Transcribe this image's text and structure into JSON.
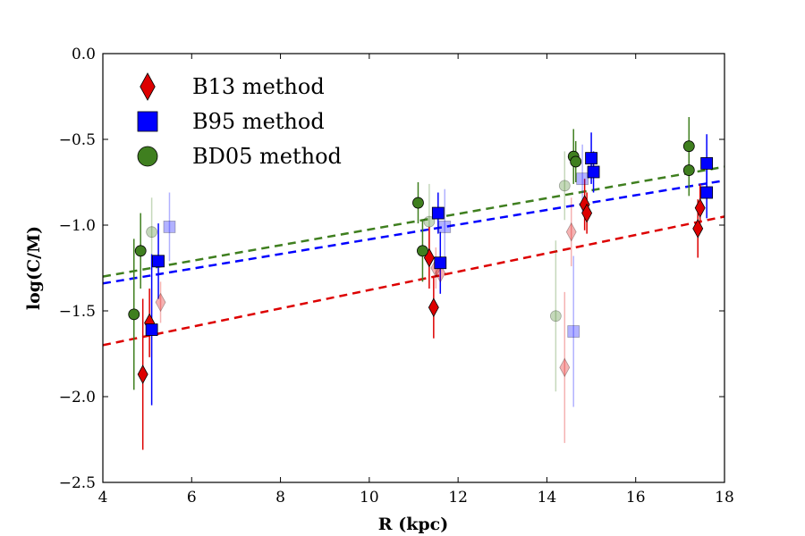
{
  "chart_data": {
    "type": "scatter",
    "title": "",
    "xlabel": "R (kpc)",
    "ylabel": "log(C/M)",
    "xlim": [
      4,
      18
    ],
    "ylim": [
      -2.5,
      0.0
    ],
    "xticks": [
      4,
      6,
      8,
      10,
      12,
      14,
      16,
      18
    ],
    "xtick_labels": [
      "4",
      "6",
      "8",
      "10",
      "12",
      "14",
      "16",
      "18"
    ],
    "yticks": [
      0.0,
      -0.5,
      -1.0,
      -1.5,
      -2.0,
      -2.5
    ],
    "ytick_labels": [
      "0.0",
      "−0.5",
      "−1.0",
      "−1.5",
      "−2.0",
      "−2.5"
    ],
    "legend_position": "top-left",
    "series": [
      {
        "name": "B13 method",
        "marker": "diamond",
        "color": "#dd0000",
        "points": [
          {
            "x": 4.9,
            "y": -1.87,
            "err": 0.44,
            "faded": false
          },
          {
            "x": 5.05,
            "y": -1.57,
            "err": 0.2,
            "faded": false
          },
          {
            "x": 5.3,
            "y": -1.45,
            "err": 0.12,
            "faded": true
          },
          {
            "x": 11.35,
            "y": -1.19,
            "err": 0.18,
            "faded": false
          },
          {
            "x": 11.45,
            "y": -1.48,
            "err": 0.18,
            "faded": false
          },
          {
            "x": 11.5,
            "y": -1.25,
            "err": 0.12,
            "faded": true
          },
          {
            "x": 11.6,
            "y": -1.28,
            "err": 0.12,
            "faded": true
          },
          {
            "x": 14.4,
            "y": -1.83,
            "err": 0.44,
            "faded": true
          },
          {
            "x": 14.55,
            "y": -1.04,
            "err": 0.2,
            "faded": true
          },
          {
            "x": 14.85,
            "y": -0.88,
            "err": 0.15,
            "faded": false
          },
          {
            "x": 14.9,
            "y": -0.93,
            "err": 0.12,
            "faded": false
          },
          {
            "x": 17.4,
            "y": -1.02,
            "err": 0.17,
            "faded": false
          },
          {
            "x": 17.45,
            "y": -0.9,
            "err": 0.14,
            "faded": false
          }
        ],
        "fit": {
          "x": [
            4,
            18
          ],
          "y": [
            -1.7,
            -0.95
          ]
        }
      },
      {
        "name": "B95 method",
        "marker": "square",
        "color": "#0000ff",
        "points": [
          {
            "x": 5.1,
            "y": -1.61,
            "err": 0.44,
            "faded": false
          },
          {
            "x": 5.25,
            "y": -1.21,
            "err": 0.22,
            "faded": false
          },
          {
            "x": 5.5,
            "y": -1.01,
            "err": 0.2,
            "faded": true
          },
          {
            "x": 11.55,
            "y": -0.93,
            "err": 0.12,
            "faded": false
          },
          {
            "x": 11.6,
            "y": -1.22,
            "err": 0.18,
            "faded": false
          },
          {
            "x": 11.7,
            "y": -1.01,
            "err": 0.22,
            "faded": true
          },
          {
            "x": 14.6,
            "y": -1.62,
            "err": 0.44,
            "faded": true
          },
          {
            "x": 14.8,
            "y": -0.73,
            "err": 0.2,
            "faded": true
          },
          {
            "x": 15.0,
            "y": -0.61,
            "err": 0.15,
            "faded": false
          },
          {
            "x": 15.05,
            "y": -0.69,
            "err": 0.12,
            "faded": false
          },
          {
            "x": 17.6,
            "y": -0.64,
            "err": 0.17,
            "faded": false
          },
          {
            "x": 17.6,
            "y": -0.81,
            "err": 0.15,
            "faded": false
          }
        ],
        "fit": {
          "x": [
            4,
            18
          ],
          "y": [
            -1.34,
            -0.74
          ]
        }
      },
      {
        "name": "BD05 method",
        "marker": "circle",
        "color": "#3f7f1f",
        "points": [
          {
            "x": 4.7,
            "y": -1.52,
            "err": 0.44,
            "faded": false
          },
          {
            "x": 4.85,
            "y": -1.15,
            "err": 0.22,
            "faded": false
          },
          {
            "x": 5.1,
            "y": -1.04,
            "err": 0.2,
            "faded": true
          },
          {
            "x": 11.1,
            "y": -0.87,
            "err": 0.12,
            "faded": false
          },
          {
            "x": 11.2,
            "y": -1.15,
            "err": 0.18,
            "faded": false
          },
          {
            "x": 11.35,
            "y": -0.98,
            "err": 0.22,
            "faded": true
          },
          {
            "x": 14.2,
            "y": -1.53,
            "err": 0.44,
            "faded": true
          },
          {
            "x": 14.4,
            "y": -0.77,
            "err": 0.2,
            "faded": true
          },
          {
            "x": 14.6,
            "y": -0.6,
            "err": 0.16,
            "faded": false
          },
          {
            "x": 14.65,
            "y": -0.63,
            "err": 0.12,
            "faded": false
          },
          {
            "x": 17.2,
            "y": -0.54,
            "err": 0.17,
            "faded": false
          },
          {
            "x": 17.2,
            "y": -0.68,
            "err": 0.15,
            "faded": false
          }
        ],
        "fit": {
          "x": [
            4,
            18
          ],
          "y": [
            -1.3,
            -0.66
          ]
        }
      }
    ]
  }
}
